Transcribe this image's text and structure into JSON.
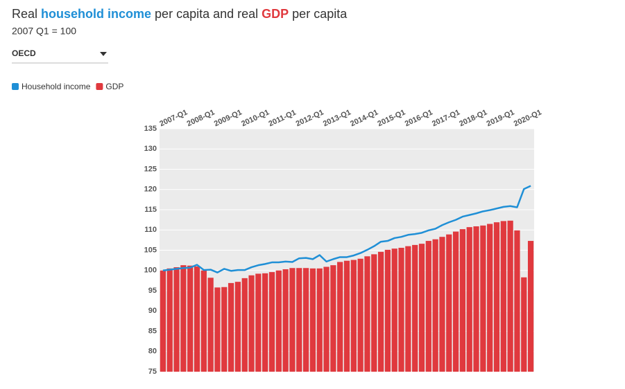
{
  "chart_data": {
    "type": "bar_line",
    "title_parts": [
      "Real ",
      "household income",
      " per capita and real ",
      "GDP",
      " per capita"
    ],
    "subtitle": "2007 Q1 = 100",
    "selector": "OECD",
    "categories": [
      "2007-Q1",
      null,
      null,
      null,
      "2008-Q1",
      null,
      null,
      null,
      "2009-Q1",
      null,
      null,
      null,
      "2010-Q1",
      null,
      null,
      null,
      "2011-Q1",
      null,
      null,
      null,
      "2012-Q1",
      null,
      null,
      null,
      "2013-Q1",
      null,
      null,
      null,
      "2014-Q1",
      null,
      null,
      null,
      "2015-Q1",
      null,
      null,
      null,
      "2016-Q1",
      null,
      null,
      null,
      "2017-Q1",
      null,
      null,
      null,
      "2018-Q1",
      null,
      null,
      null,
      "2019-Q1",
      null,
      null,
      null,
      "2020-Q1",
      null,
      null
    ],
    "series": [
      {
        "name": "Household income",
        "color": "#1f8fd6",
        "kind": "line",
        "values": [
          100,
          100.2,
          100.4,
          100.6,
          100.7,
          101.4,
          100.1,
          100.2,
          99.5,
          100.4,
          99.9,
          100.1,
          100.1,
          100.8,
          101.3,
          101.6,
          102,
          102,
          102.2,
          102.1,
          103,
          103.1,
          102.8,
          103.8,
          102.2,
          102.8,
          103.3,
          103.3,
          103.7,
          104.3,
          105.1,
          106,
          107.1,
          107.3,
          108,
          108.3,
          108.8,
          109,
          109.3,
          109.9,
          110.3,
          111.2,
          111.9,
          112.5,
          113.3,
          113.7,
          114.1,
          114.6,
          114.9,
          115.3,
          115.7,
          115.9,
          115.6,
          120.1,
          120.9
        ]
      },
      {
        "name": "GDP",
        "color": "#e0393e",
        "kind": "bar",
        "values": [
          100,
          100.5,
          100.8,
          101.3,
          101.2,
          101,
          100,
          98.2,
          95.8,
          95.9,
          96.9,
          97.2,
          98.1,
          98.8,
          99.2,
          99.3,
          99.6,
          100,
          100.3,
          100.6,
          100.6,
          100.6,
          100.5,
          100.5,
          100.9,
          101.3,
          102.1,
          102.4,
          102.6,
          102.9,
          103.5,
          104,
          104.6,
          105.1,
          105.4,
          105.6,
          106,
          106.3,
          106.6,
          107.3,
          107.7,
          108.3,
          108.9,
          109.6,
          110.2,
          110.7,
          110.9,
          111.1,
          111.5,
          111.9,
          112.2,
          112.3,
          109.9,
          98.3,
          107.3
        ]
      }
    ],
    "ylim": [
      75,
      135
    ],
    "yticks": [
      75,
      80,
      85,
      90,
      95,
      100,
      105,
      110,
      115,
      120,
      125,
      130,
      135
    ],
    "grid": true
  }
}
